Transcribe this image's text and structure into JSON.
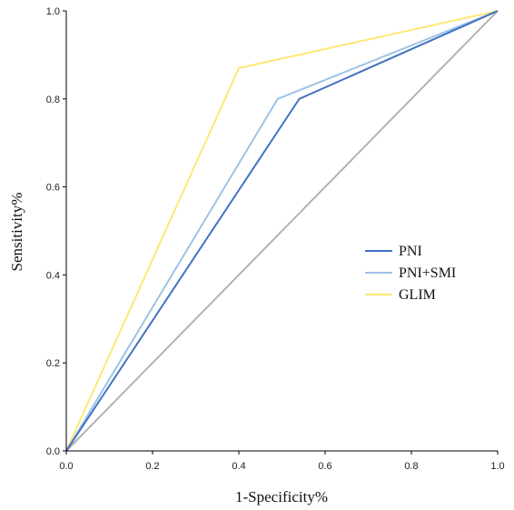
{
  "chart_data": {
    "type": "line",
    "xlabel": "1-Specificity%",
    "ylabel": "Sensitivity%",
    "xlim": [
      0,
      1
    ],
    "ylim": [
      0,
      1
    ],
    "xticks": [
      "0.0",
      "0.2",
      "0.4",
      "0.6",
      "0.8",
      "1.0"
    ],
    "yticks": [
      "0.0",
      "0.2",
      "0.4",
      "0.6",
      "0.8",
      "1.0"
    ],
    "grid": false,
    "legend_position": "right-middle",
    "reference_line": {
      "x": [
        0,
        1
      ],
      "y": [
        0,
        1
      ],
      "color": "#b3b3b3"
    },
    "series": [
      {
        "name": "PNI",
        "color": "#4472c4",
        "x": [
          0,
          0.54,
          1
        ],
        "y": [
          0,
          0.8,
          1
        ]
      },
      {
        "name": "PNI+SMI",
        "color": "#9dc3e6",
        "x": [
          0,
          0.49,
          1
        ],
        "y": [
          0,
          0.8,
          1
        ]
      },
      {
        "name": "GLIM",
        "color": "#ffe873",
        "x": [
          0,
          0.4,
          1
        ],
        "y": [
          0,
          0.87,
          1
        ]
      }
    ]
  }
}
